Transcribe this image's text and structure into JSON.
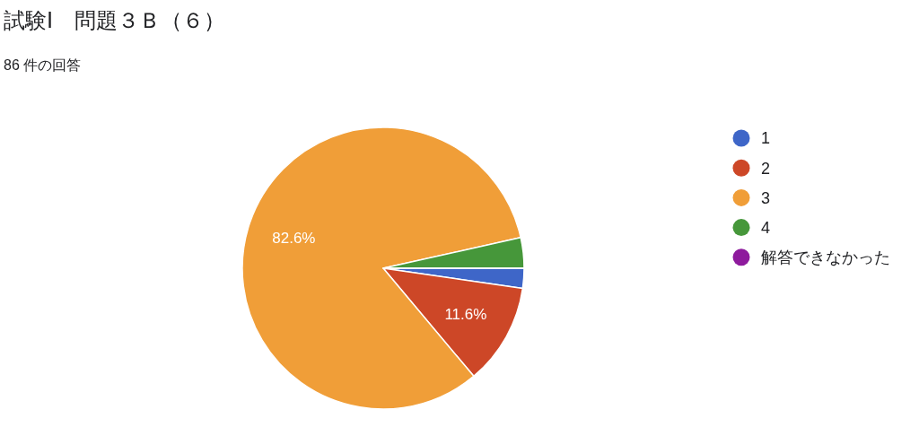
{
  "chart_data": {
    "type": "pie",
    "title": "試験Ⅰ　問題３Ｂ（６）",
    "subtitle": "86 件の回答",
    "categories": [
      "1",
      "2",
      "3",
      "4",
      "解答できなかった"
    ],
    "values": [
      2.3,
      11.6,
      82.6,
      3.5,
      0
    ],
    "colors": [
      "#3e66c8",
      "#cd4727",
      "#f09e38",
      "#46973a",
      "#8e1b9d"
    ],
    "value_labels": [
      null,
      "11.6%",
      "82.6%",
      null,
      null
    ],
    "legend": "right"
  }
}
